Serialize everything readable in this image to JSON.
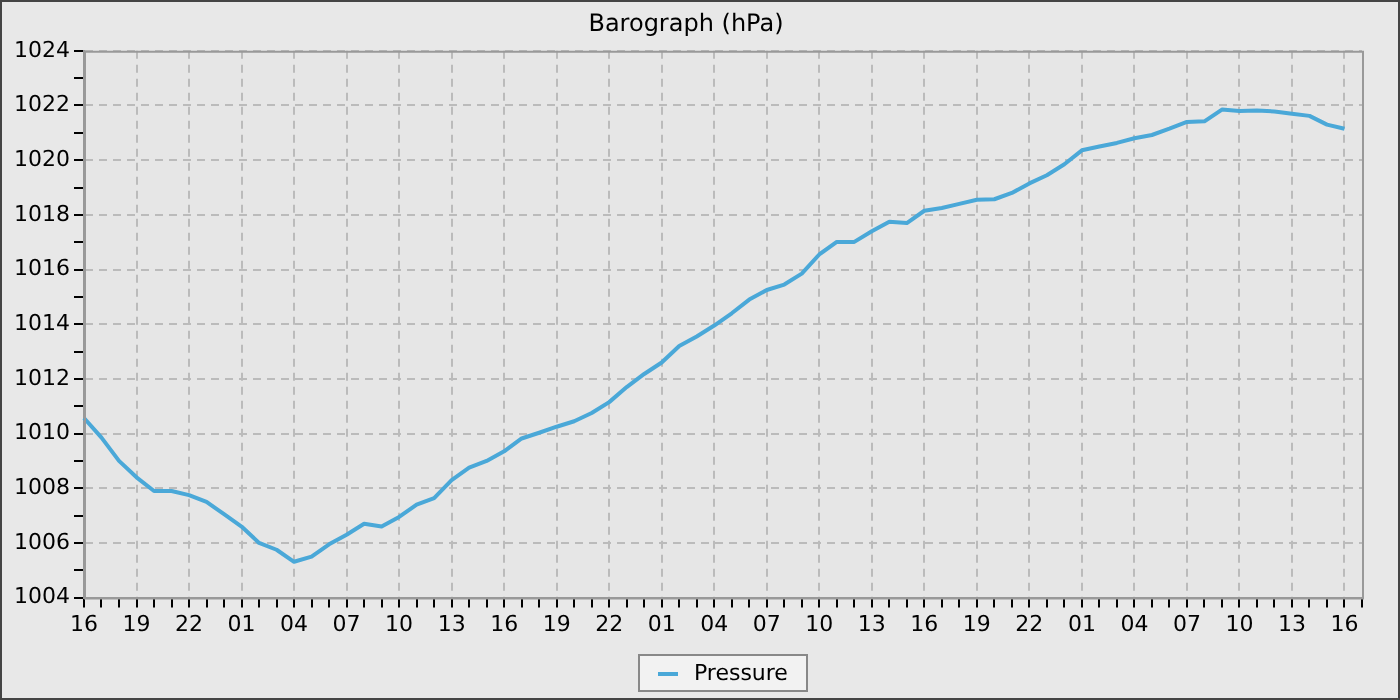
{
  "chart_data": {
    "type": "line",
    "title": "Barograph (hPa)",
    "categories": [
      "16",
      null,
      null,
      "19",
      null,
      null,
      "22",
      null,
      null,
      "01",
      null,
      null,
      "04",
      null,
      null,
      "07",
      null,
      null,
      "10",
      null,
      null,
      "13",
      null,
      null,
      "16",
      null,
      null,
      "19",
      null,
      null,
      "22",
      null,
      null,
      "01",
      null,
      null,
      "04",
      null,
      null,
      "07",
      null,
      null,
      "10",
      null,
      null,
      "13",
      null,
      null,
      "16",
      null,
      null,
      "19",
      null,
      null,
      "22",
      null,
      null,
      "01",
      null,
      null,
      "04",
      null,
      null,
      "07",
      null,
      null,
      "10",
      null,
      null,
      "13",
      null,
      null,
      "16",
      null
    ],
    "ylim": [
      1004,
      1024
    ],
    "yticks": [
      1004,
      {
        "value": 1005,
        "label": null
      },
      1006,
      {
        "value": 1007,
        "label": null
      },
      1008,
      {
        "value": 1009,
        "label": null
      },
      1010,
      {
        "value": 1011,
        "label": null
      },
      1012,
      {
        "value": 1013,
        "label": null
      },
      1014,
      {
        "value": 1015,
        "label": null
      },
      1016,
      {
        "value": 1017,
        "label": null
      },
      1018,
      {
        "value": 1019,
        "label": null
      },
      1020,
      {
        "value": 1021,
        "label": null
      },
      1022,
      {
        "value": 1023,
        "label": null
      },
      1024
    ],
    "grid": true,
    "legend": "bottom",
    "marker": "none",
    "line_style": "solid",
    "series": [
      {
        "name": "Pressure",
        "color": "#4aa8d8",
        "values": [
          1010.57,
          1009.85,
          1009.0,
          1008.4,
          1007.9,
          1007.9,
          1007.75,
          1007.5,
          1007.05,
          1006.6,
          1006.0,
          1005.75,
          1005.31,
          1005.5,
          1005.95,
          1006.3,
          1006.7,
          1006.6,
          1006.95,
          1007.4,
          1007.64,
          1008.3,
          1008.75,
          1009.0,
          1009.35,
          1009.82,
          1010.03,
          1010.25,
          1010.45,
          1010.75,
          1011.15,
          1011.7,
          1012.18,
          1012.6,
          1013.2,
          1013.55,
          1013.95,
          1014.4,
          1014.9,
          1015.25,
          1015.45,
          1015.85,
          1016.55,
          1017.01,
          1017.01,
          1017.4,
          1017.75,
          1017.7,
          1018.15,
          1018.25,
          1018.4,
          1018.55,
          1018.57,
          1018.8,
          1019.15,
          1019.45,
          1019.85,
          1020.36,
          1020.5,
          1020.63,
          1020.8,
          1020.92,
          1021.15,
          1021.4,
          1021.42,
          1021.85,
          1021.8,
          1021.82,
          1021.78,
          1021.7,
          1021.62,
          1021.3,
          1021.15,
          null
        ]
      }
    ]
  }
}
